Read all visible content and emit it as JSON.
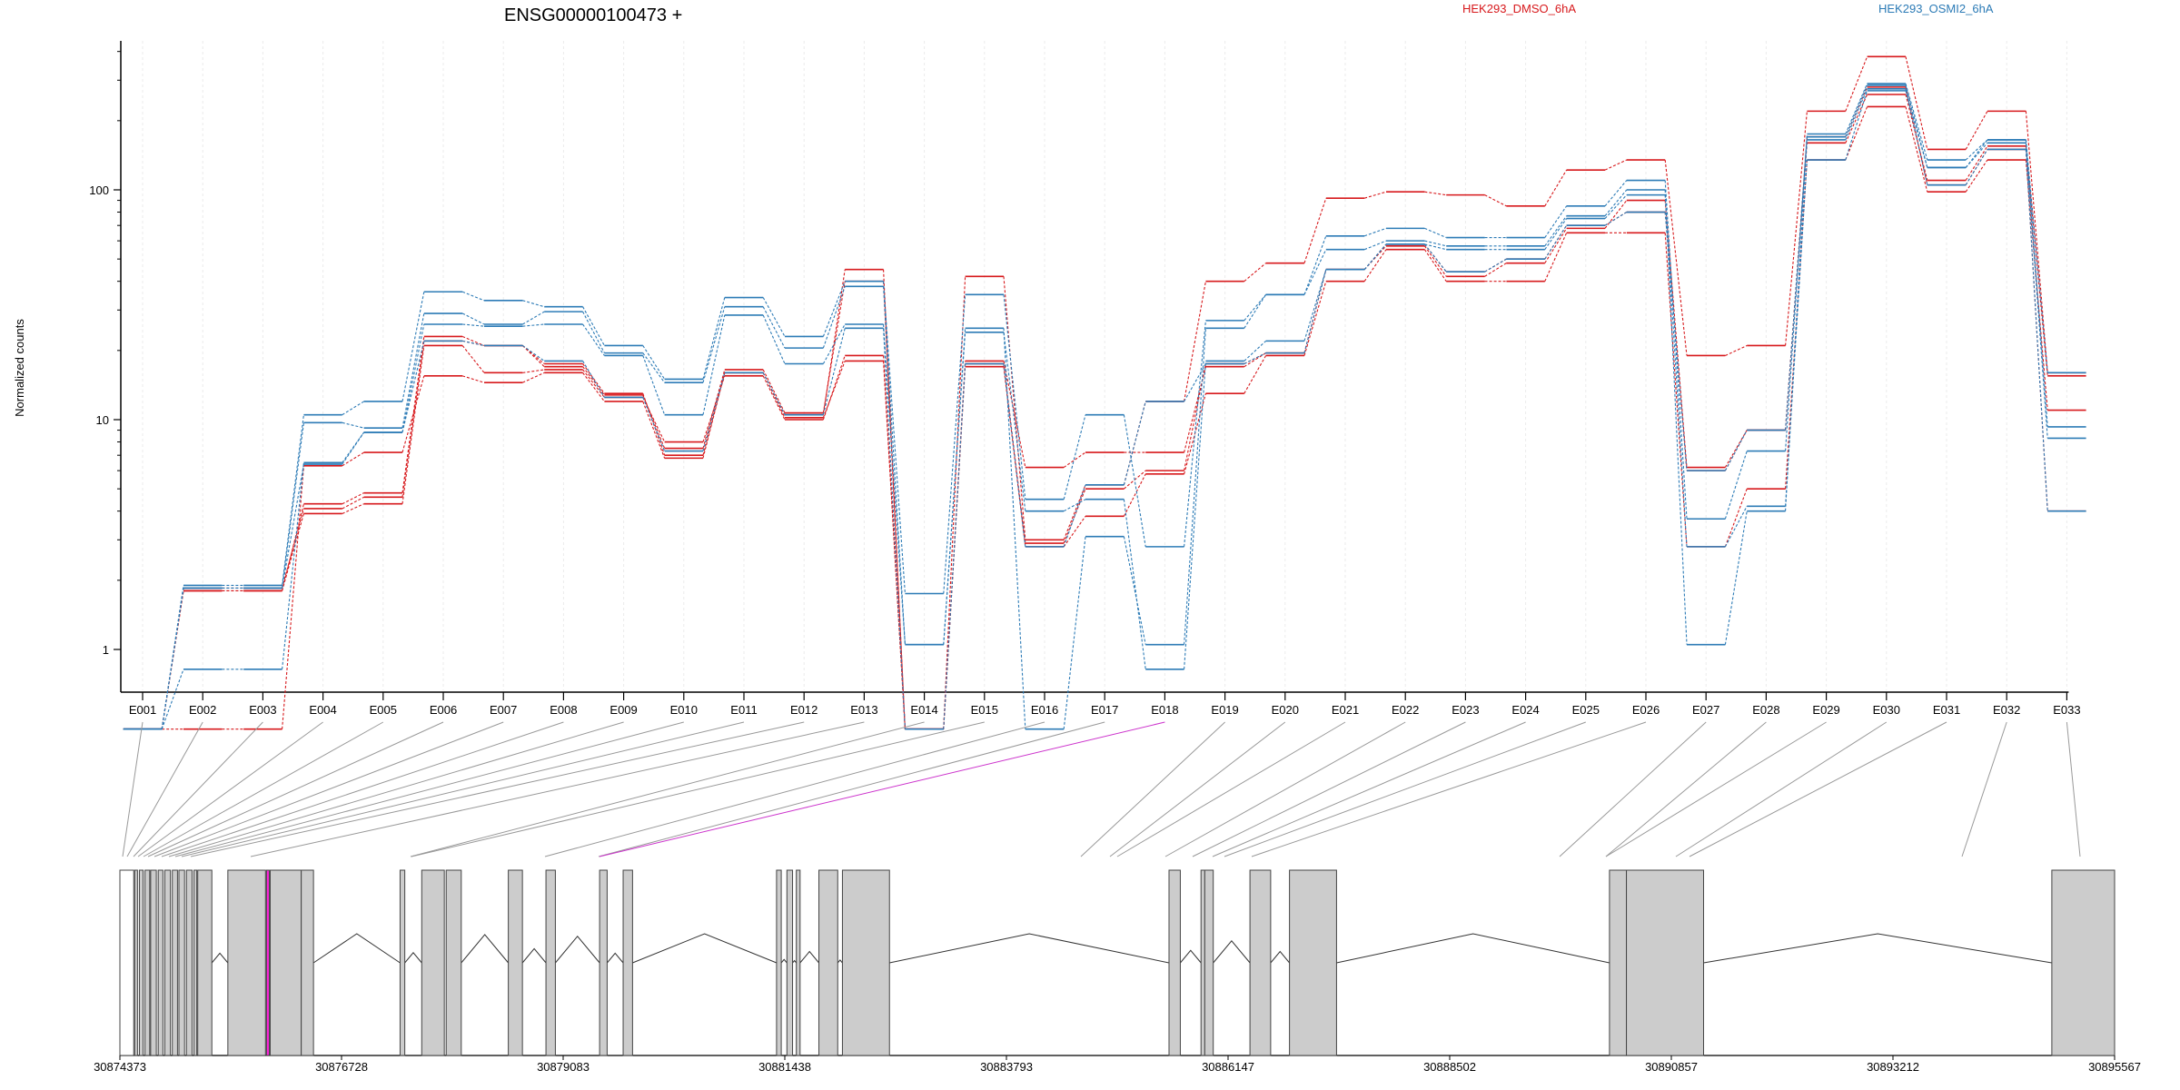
{
  "chart_data": {
    "type": "line",
    "title": "ENSG00000100473 +",
    "ylabel": "Normalized counts",
    "y_scale": "log",
    "y_ticks": [
      1,
      10,
      100
    ],
    "exon_labels": [
      "E001",
      "E002",
      "E003",
      "E004",
      "E005",
      "E006",
      "E007",
      "E008",
      "E009",
      "E010",
      "E011",
      "E012",
      "E013",
      "E014",
      "E015",
      "E016",
      "E017",
      "E018",
      "E019",
      "E020",
      "E021",
      "E022",
      "E023",
      "E024",
      "E025",
      "E026",
      "E027",
      "E028",
      "E029",
      "E030",
      "E031",
      "E032",
      "E033"
    ],
    "highlighted_exon": "E018",
    "legend": [
      {
        "name": "HEK293_DMSO_6hA",
        "color": "#d7191c"
      },
      {
        "name": "HEK293_OSMI2_6hA",
        "color": "#2c7bb6"
      }
    ],
    "series": [
      {
        "group": "HEK293_DMSO_6hA",
        "values": [
          0.45,
          1.8,
          1.8,
          4.3,
          4.8,
          23,
          21,
          17.5,
          13,
          7,
          16,
          10.5,
          45,
          0.45,
          42,
          3,
          5.2,
          12,
          40,
          48,
          92,
          98,
          95,
          85,
          122,
          135,
          19,
          21,
          220,
          380,
          150,
          220,
          16
        ]
      },
      {
        "group": "HEK293_DMSO_6hA",
        "values": [
          0.45,
          1.8,
          1.8,
          3.9,
          4.3,
          21,
          16,
          16.5,
          12.5,
          8,
          15.5,
          10,
          19,
          0.45,
          18,
          6.2,
          7.2,
          7.2,
          17,
          19.5,
          45,
          57,
          42,
          48,
          68,
          90,
          6.2,
          9,
          160,
          260,
          110,
          155,
          15.5
        ]
      },
      {
        "group": "HEK293_DMSO_6hA",
        "values": [
          0.45,
          0.45,
          0.45,
          6.3,
          7.2,
          15.5,
          14.5,
          16,
          12,
          6.8,
          16,
          10.2,
          18,
          0.45,
          17,
          2.8,
          3.8,
          5.8,
          13,
          19,
          40,
          55,
          40,
          40,
          65,
          65,
          2.8,
          5,
          135,
          230,
          98,
          135,
          11
        ]
      },
      {
        "group": "HEK293_DMSO_6hA",
        "values": [
          0.45,
          1.85,
          1.85,
          4.1,
          4.6,
          22,
          21,
          17,
          12.8,
          7.5,
          16.5,
          10.7,
          40,
          0.45,
          17.5,
          2.9,
          5,
          6,
          17.5,
          19.5,
          45,
          58,
          44,
          50,
          70,
          80,
          6,
          9,
          170,
          280,
          105,
          150,
          4
        ]
      },
      {
        "group": "HEK293_OSMI2_6hA",
        "values": [
          0.45,
          1.9,
          1.9,
          10.5,
          12,
          36,
          33,
          31,
          21,
          15,
          34,
          23,
          40,
          1.75,
          35,
          4.5,
          10.5,
          2.8,
          27,
          35,
          63,
          68,
          62,
          62,
          85,
          110,
          3.7,
          7.3,
          175,
          290,
          135,
          165,
          16
        ]
      },
      {
        "group": "HEK293_OSMI2_6hA",
        "values": [
          0.45,
          1.85,
          1.85,
          9.7,
          9.2,
          29,
          26,
          29.5,
          19.5,
          14.5,
          31,
          20.5,
          38,
          1.05,
          25,
          0.45,
          3.1,
          1.05,
          25,
          35,
          55,
          60,
          57,
          57,
          77,
          100,
          1.05,
          4,
          170,
          285,
          125,
          165,
          9.3
        ]
      },
      {
        "group": "HEK293_OSMI2_6hA",
        "values": [
          0.45,
          0.82,
          0.82,
          6.5,
          8.8,
          26,
          25.5,
          26,
          19,
          10.5,
          28.5,
          17.5,
          26,
          1.05,
          24,
          4,
          4.5,
          0.82,
          18,
          22,
          45,
          58,
          55,
          55,
          75,
          95,
          2.8,
          4.2,
          135,
          270,
          125,
          160,
          8.3
        ]
      },
      {
        "group": "HEK293_OSMI2_6hA",
        "values": [
          0.45,
          1.85,
          1.85,
          6.4,
          8.8,
          22,
          21,
          18,
          12.5,
          7.3,
          16,
          10.5,
          25,
          0.45,
          17.5,
          2.8,
          5.2,
          12,
          17.5,
          19.5,
          45,
          58,
          44,
          50,
          70,
          80,
          6,
          9,
          165,
          275,
          105,
          150,
          4
        ]
      }
    ],
    "genomic_ticks": [
      "30874373",
      "30876728",
      "30879083",
      "30881438",
      "30883793",
      "30886147",
      "30888502",
      "30890857",
      "30893212",
      "30895567"
    ],
    "gene_model": {
      "start": 30874373,
      "end": 30895567,
      "exons": [
        [
          30874373,
          30874520
        ],
        [
          30874530,
          30874560
        ],
        [
          30874580,
          30874620
        ],
        [
          30874640,
          30874690
        ],
        [
          30874700,
          30874760
        ],
        [
          30874780,
          30874830
        ],
        [
          30874850,
          30874910
        ],
        [
          30874930,
          30874985
        ],
        [
          30875000,
          30875060
        ],
        [
          30875080,
          30875140
        ],
        [
          30875160,
          30875190
        ],
        [
          30875200,
          30875350
        ],
        [
          30875520,
          30875920
        ],
        [
          30875930,
          30875960
        ],
        [
          30875970,
          30876300
        ],
        [
          30876300,
          30876430
        ],
        [
          30877350,
          30877400
        ],
        [
          30877580,
          30877820
        ],
        [
          30877840,
          30878000
        ],
        [
          30878500,
          30878650
        ],
        [
          30878900,
          30879000
        ],
        [
          30879470,
          30879550
        ],
        [
          30879720,
          30879820
        ],
        [
          30881350,
          30881400
        ],
        [
          30881460,
          30881520
        ],
        [
          30881560,
          30881600
        ],
        [
          30881800,
          30882000
        ],
        [
          30882050,
          30882550
        ],
        [
          30885520,
          30885640
        ],
        [
          30885860,
          30885900
        ],
        [
          30885900,
          30885990
        ],
        [
          30886380,
          30886600
        ],
        [
          30886800,
          30887300
        ],
        [
          30890200,
          30890380
        ],
        [
          30890380,
          30891200
        ],
        [
          30894900,
          30895567
        ]
      ]
    }
  }
}
